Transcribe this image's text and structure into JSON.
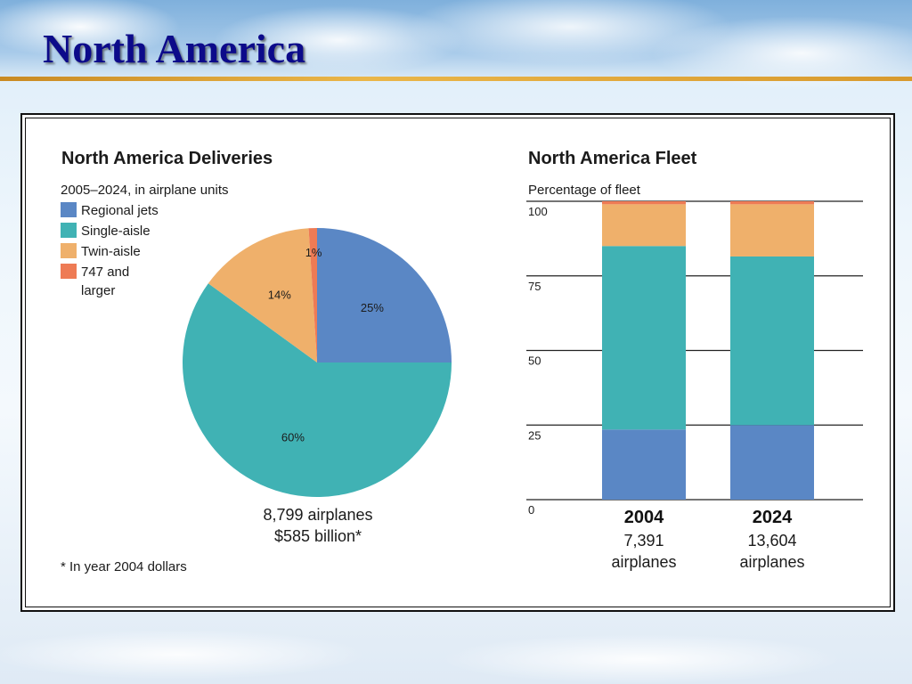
{
  "slide": {
    "title": "North America",
    "colors": {
      "title": "#0c0a8a",
      "rule": "#e0a63c"
    }
  },
  "chart_data": [
    {
      "type": "pie",
      "title": "North America Deliveries",
      "subtitle": "2005–2024, in airplane units",
      "legend_position": "top-left",
      "slices": [
        {
          "name": "Regional jets",
          "value": 25,
          "label": "25%",
          "color": "#5a87c5"
        },
        {
          "name": "Single-aisle",
          "value": 60,
          "label": "60%",
          "color": "#40b2b4"
        },
        {
          "name": "Twin-aisle",
          "value": 14,
          "label": "14%",
          "color": "#efb06b"
        },
        {
          "name": "747 and larger",
          "value": 1,
          "label": "1%",
          "color": "#ee7b55"
        }
      ],
      "legend": [
        {
          "lines": [
            "Regional jets"
          ],
          "color": "#5a87c5"
        },
        {
          "lines": [
            "Single-aisle"
          ],
          "color": "#40b2b4"
        },
        {
          "lines": [
            "Twin-aisle"
          ],
          "color": "#efb06b"
        },
        {
          "lines": [
            "747 and",
            "larger"
          ],
          "color": "#ee7b55"
        }
      ],
      "summary": [
        "8,799 airplanes",
        "$585 billion*"
      ],
      "footnote": "* In year 2004 dollars"
    },
    {
      "type": "bar",
      "stacked": true,
      "title": "North America Fleet",
      "ylabel": "Percentage of fleet",
      "ylim": [
        0,
        100
      ],
      "yticks": [
        "0",
        "25",
        "50",
        "75",
        "100"
      ],
      "grid": true,
      "categories": [
        "2004",
        "2024"
      ],
      "category_notes": [
        [
          "7,391",
          "airplanes"
        ],
        [
          "13,604",
          "airplanes"
        ]
      ],
      "series": [
        {
          "name": "Regional jets",
          "color": "#5a87c5",
          "values": [
            23.5,
            25
          ]
        },
        {
          "name": "Single-aisle",
          "color": "#40b2b4",
          "values": [
            61.5,
            56.5
          ]
        },
        {
          "name": "Twin-aisle",
          "color": "#efb06b",
          "values": [
            14,
            17.5
          ]
        },
        {
          "name": "747 and larger",
          "color": "#ee7b55",
          "values": [
            1,
            1
          ]
        }
      ]
    }
  ]
}
